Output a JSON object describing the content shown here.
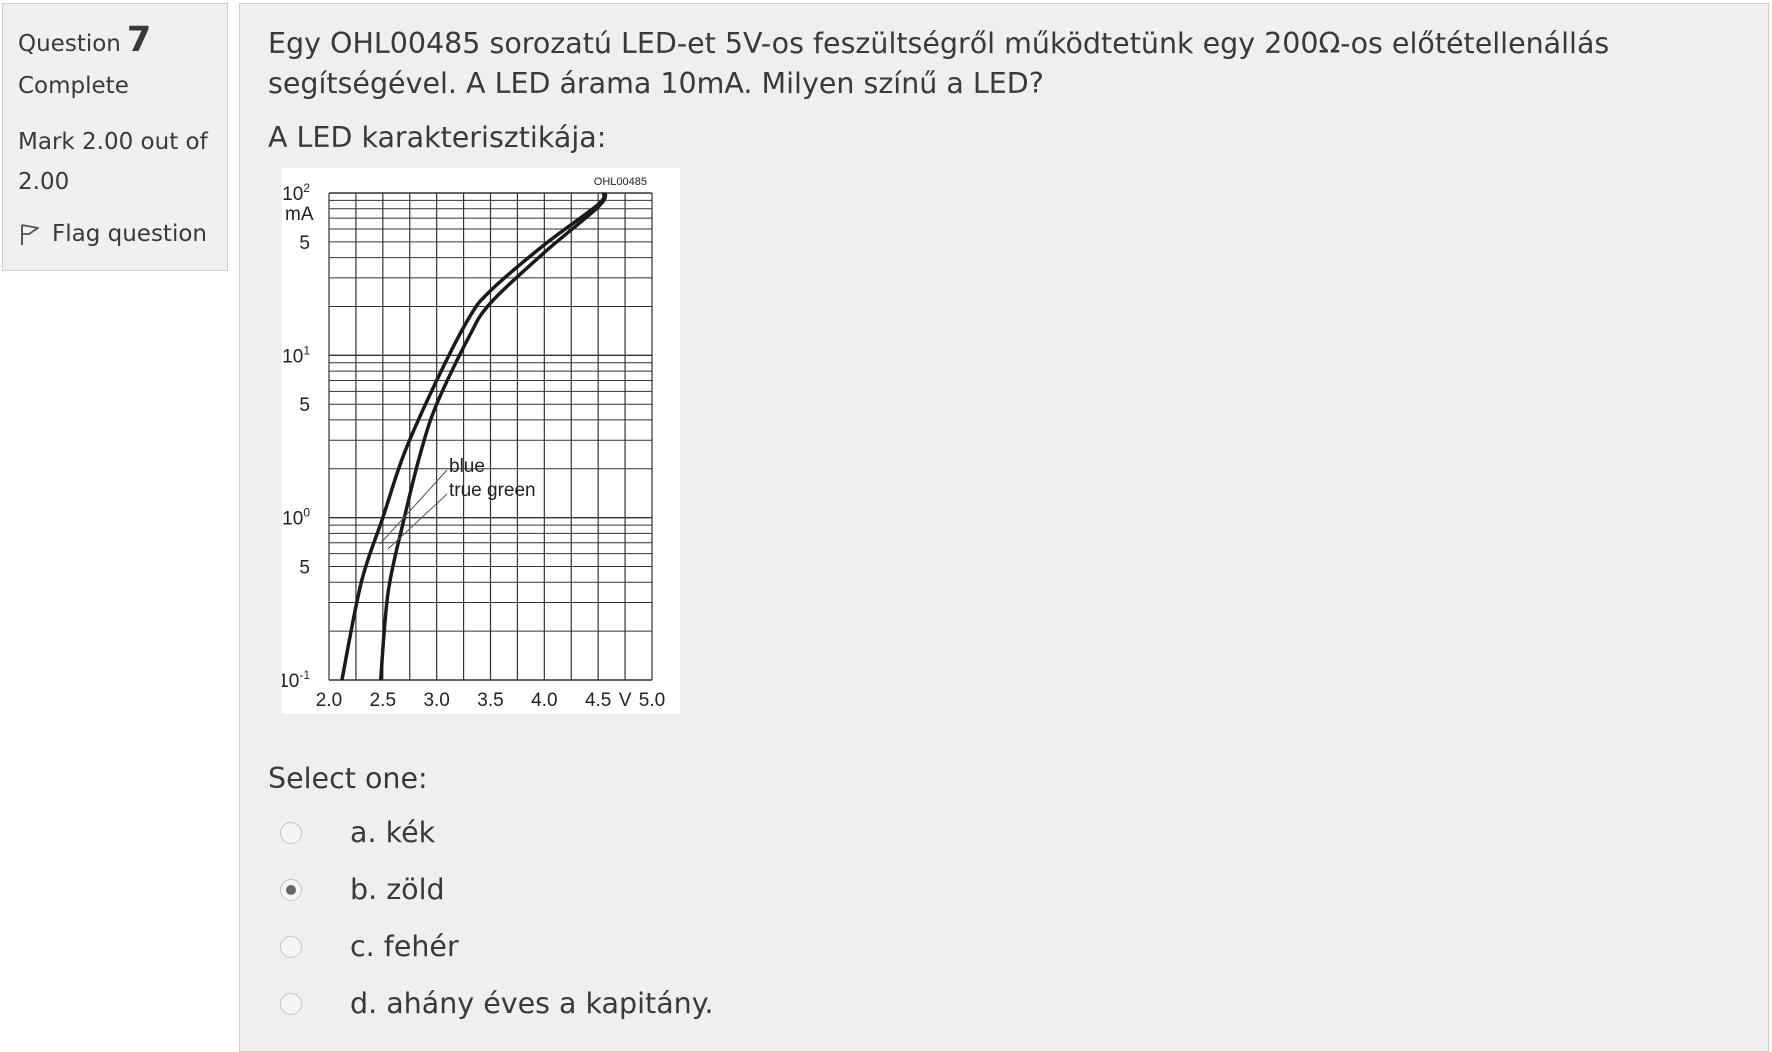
{
  "info": {
    "question_label": "Question",
    "question_number": "7",
    "state": "Complete",
    "grade": "Mark 2.00 out of 2.00",
    "flag_label": "Flag question"
  },
  "question": {
    "text": "Egy OHL00485 sorozatú LED-et 5V-os feszültségről működtetünk egy 200Ω-os előtétellenállás segítségével. A LED árama 10mA. Milyen színű a LED?",
    "subtext": "A LED karakterisztikája:",
    "prompt": "Select one:",
    "answers": [
      {
        "label": "a. kék",
        "checked": false
      },
      {
        "label": "b. zöld",
        "checked": true
      },
      {
        "label": "c. fehér",
        "checked": false
      },
      {
        "label": "d. ahány éves a kapitány.",
        "checked": false
      }
    ]
  },
  "chart_data": {
    "type": "line",
    "title": "OHL00485",
    "xlabel": "V",
    "ylabel": "mA",
    "x_ticks": [
      "2.0",
      "2.5",
      "3.0",
      "3.5",
      "4.0",
      "4.5",
      "5.0"
    ],
    "y_ticks": [
      "10-1",
      "5",
      "100",
      "5",
      "101",
      "5",
      "102"
    ],
    "xlim": [
      2.0,
      5.0
    ],
    "ylim": [
      0.1,
      100
    ],
    "yscale": "log",
    "grid": true,
    "series": [
      {
        "name": "blue",
        "x": [
          2.12,
          2.3,
          2.5,
          2.7,
          3.0,
          3.3,
          3.5,
          4.0,
          4.5,
          4.55
        ],
        "y": [
          0.1,
          0.4,
          1.0,
          2.5,
          7.0,
          17,
          25,
          48,
          85,
          100
        ]
      },
      {
        "name": "true green",
        "x": [
          2.48,
          2.55,
          2.7,
          2.85,
          3.0,
          3.3,
          3.5,
          4.0,
          4.5,
          4.57
        ],
        "y": [
          0.1,
          0.35,
          1.0,
          2.5,
          5.0,
          13,
          21,
          43,
          82,
          100
        ]
      }
    ]
  }
}
